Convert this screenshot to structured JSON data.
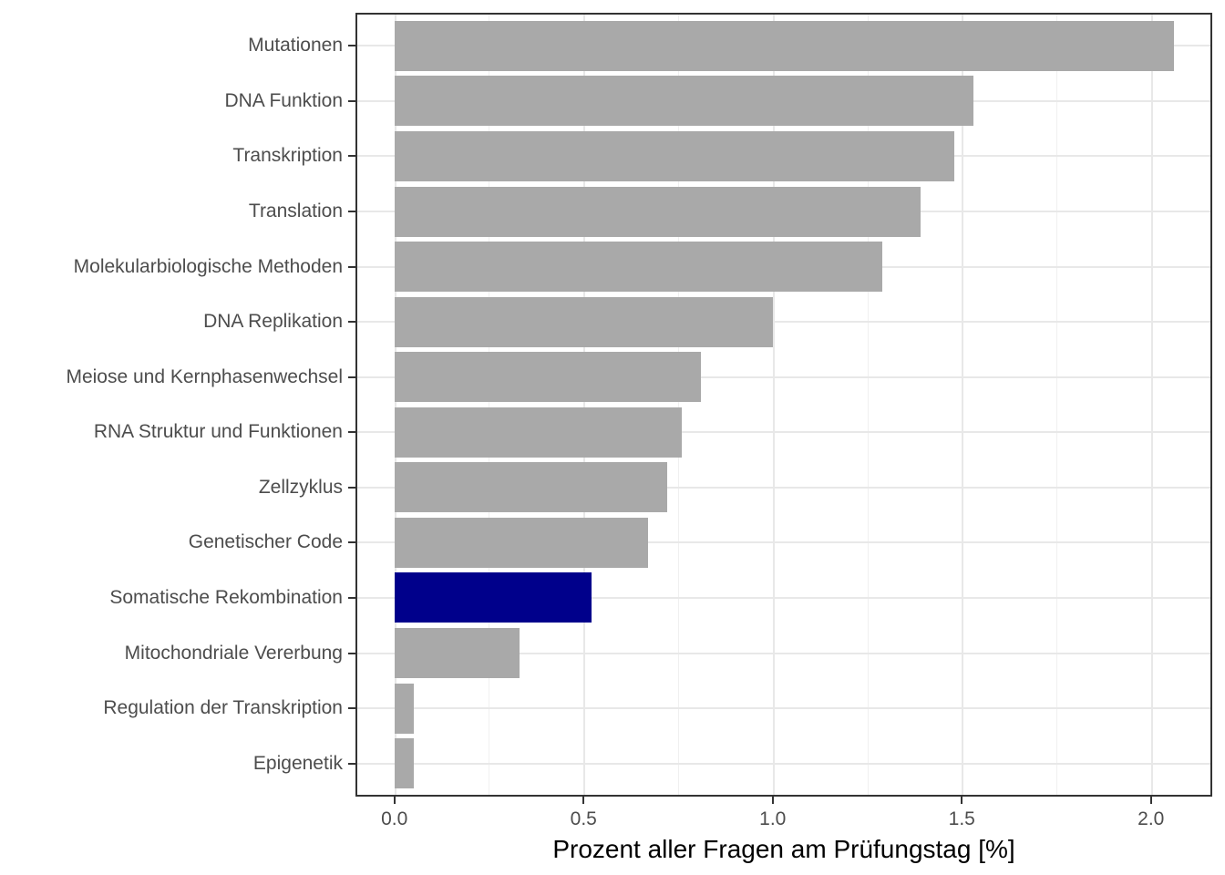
{
  "chart_data": {
    "type": "bar",
    "orientation": "horizontal",
    "title": "",
    "xlabel": "Prozent aller Fragen am Prüfungstag [%]",
    "ylabel": "",
    "categories": [
      "Mutationen",
      "DNA Funktion",
      "Transkription",
      "Translation",
      "Molekularbiologische Methoden",
      "DNA Replikation",
      "Meiose und Kernphasenwechsel",
      "RNA Struktur und Funktionen",
      "Zellzyklus",
      "Genetischer Code",
      "Somatische Rekombination",
      "Mitochondriale Vererbung",
      "Regulation der Transkription",
      "Epigenetik"
    ],
    "values": [
      2.06,
      1.53,
      1.48,
      1.39,
      1.29,
      1.0,
      0.81,
      0.76,
      0.72,
      0.67,
      0.52,
      0.33,
      0.05,
      0.05
    ],
    "highlight_category": "Somatische Rekombination",
    "highlight_index": 10,
    "x_ticks": [
      0.0,
      0.5,
      1.0,
      1.5,
      2.0
    ],
    "x_tick_labels": [
      "0.0",
      "0.5",
      "1.0",
      "1.5",
      "2.0"
    ],
    "x_minor_ticks": [
      0.25,
      0.75,
      1.25,
      1.75
    ],
    "xlim": [
      -0.103,
      2.162
    ],
    "grid": "major+minor vertical, major horizontal per category",
    "legend_position": "none",
    "colors": {
      "bar_default": "#a9a9a9",
      "bar_highlight": "#00008b",
      "grid_major": "#e8e8e8",
      "grid_minor": "#f0f0f0",
      "panel_border": "#333333",
      "axis_text": "#4d4d4d",
      "axis_title": "#000000",
      "background": "#ffffff"
    }
  }
}
